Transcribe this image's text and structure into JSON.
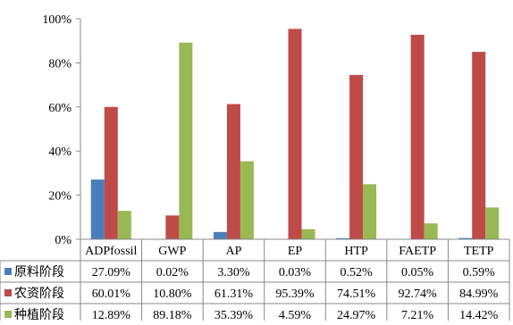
{
  "chart_data": {
    "type": "bar",
    "categories": [
      "ADPfossil",
      "GWP",
      "AP",
      "EP",
      "HTP",
      "FAETP",
      "TETP"
    ],
    "series": [
      {
        "name": "原料阶段",
        "color": "#4a7ebb",
        "values": [
          27.09,
          0.02,
          3.3,
          0.03,
          0.52,
          0.05,
          0.59
        ],
        "labels": [
          "27.09%",
          "0.02%",
          "3.30%",
          "0.03%",
          "0.52%",
          "0.05%",
          "0.59%"
        ]
      },
      {
        "name": "农资阶段",
        "color": "#be4b48",
        "values": [
          60.01,
          10.8,
          61.31,
          95.39,
          74.51,
          92.74,
          84.99
        ],
        "labels": [
          "60.01%",
          "10.80%",
          "61.31%",
          "95.39%",
          "74.51%",
          "92.74%",
          "84.99%"
        ]
      },
      {
        "name": "种植阶段",
        "color": "#98b954",
        "values": [
          12.89,
          89.18,
          35.39,
          4.59,
          24.97,
          7.21,
          14.42
        ],
        "labels": [
          "12.89%",
          "89.18%",
          "35.39%",
          "4.59%",
          "24.97%",
          "7.21%",
          "14.42%"
        ]
      }
    ],
    "ylim": [
      0,
      100
    ],
    "yticks": [
      "0%",
      "20%",
      "40%",
      "60%",
      "80%",
      "100%"
    ],
    "grid": false,
    "legend": "data-table"
  }
}
